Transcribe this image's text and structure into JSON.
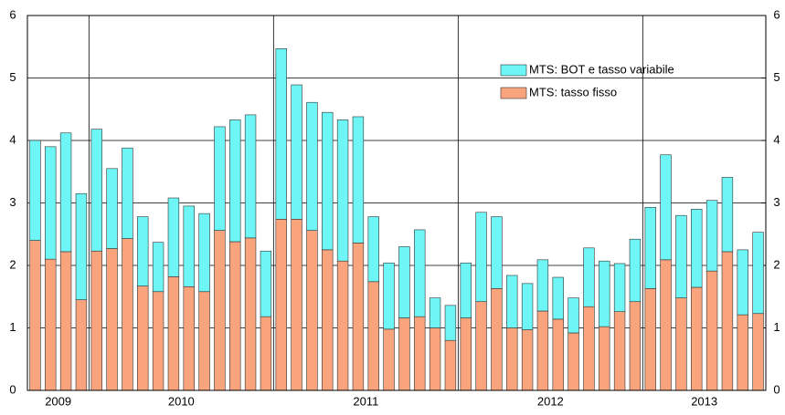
{
  "chart_data": {
    "type": "stacked-bar",
    "categories": [
      "2009",
      "2009",
      "2009",
      "2009",
      "2010",
      "2010",
      "2010",
      "2010",
      "2010",
      "2010",
      "2010",
      "2010",
      "2010",
      "2010",
      "2010",
      "2010",
      "2011",
      "2011",
      "2011",
      "2011",
      "2011",
      "2011",
      "2011",
      "2011",
      "2011",
      "2011",
      "2011",
      "2011",
      "2012",
      "2012",
      "2012",
      "2012",
      "2012",
      "2012",
      "2012",
      "2012",
      "2012",
      "2012",
      "2012",
      "2012",
      "2013",
      "2013",
      "2013",
      "2013",
      "2013",
      "2013",
      "2013",
      "2013"
    ],
    "series": [
      {
        "name": "MTS: tasso fisso",
        "color": "#f9a47c",
        "values": [
          2.4,
          2.1,
          2.22,
          1.45,
          2.23,
          2.27,
          2.43,
          1.67,
          1.58,
          1.82,
          1.66,
          1.58,
          2.56,
          2.38,
          2.44,
          1.18,
          2.74,
          2.74,
          2.56,
          2.25,
          2.07,
          2.36,
          1.74,
          0.98,
          1.16,
          1.18,
          1.0,
          0.8,
          1.16,
          1.42,
          1.63,
          1.0,
          0.97,
          1.27,
          1.14,
          0.92,
          1.34,
          1.02,
          1.26,
          1.42,
          1.63,
          2.09,
          1.48,
          1.65,
          1.91,
          2.22,
          1.21,
          1.23
        ]
      },
      {
        "name": "MTS: BOT e tasso variabile",
        "color": "#6ef6f6",
        "values": [
          1.6,
          1.8,
          1.9,
          1.7,
          1.95,
          1.28,
          1.45,
          1.11,
          0.79,
          1.26,
          1.29,
          1.25,
          1.66,
          1.95,
          1.97,
          1.05,
          2.73,
          2.15,
          2.05,
          2.2,
          2.26,
          2.02,
          1.04,
          1.06,
          1.14,
          1.39,
          0.48,
          0.56,
          0.88,
          1.43,
          1.15,
          0.84,
          0.74,
          0.82,
          0.67,
          0.56,
          0.94,
          1.05,
          0.77,
          1.0,
          1.3,
          1.68,
          1.32,
          1.25,
          1.13,
          1.19,
          1.04,
          1.3
        ]
      }
    ],
    "ylim": [
      0,
      6
    ],
    "yticks": [
      0,
      1,
      2,
      3,
      4,
      5,
      6
    ],
    "y2lim": [
      0,
      6
    ],
    "y2ticks": [
      0,
      1,
      2,
      3,
      4,
      5,
      6
    ],
    "grid": true
  }
}
